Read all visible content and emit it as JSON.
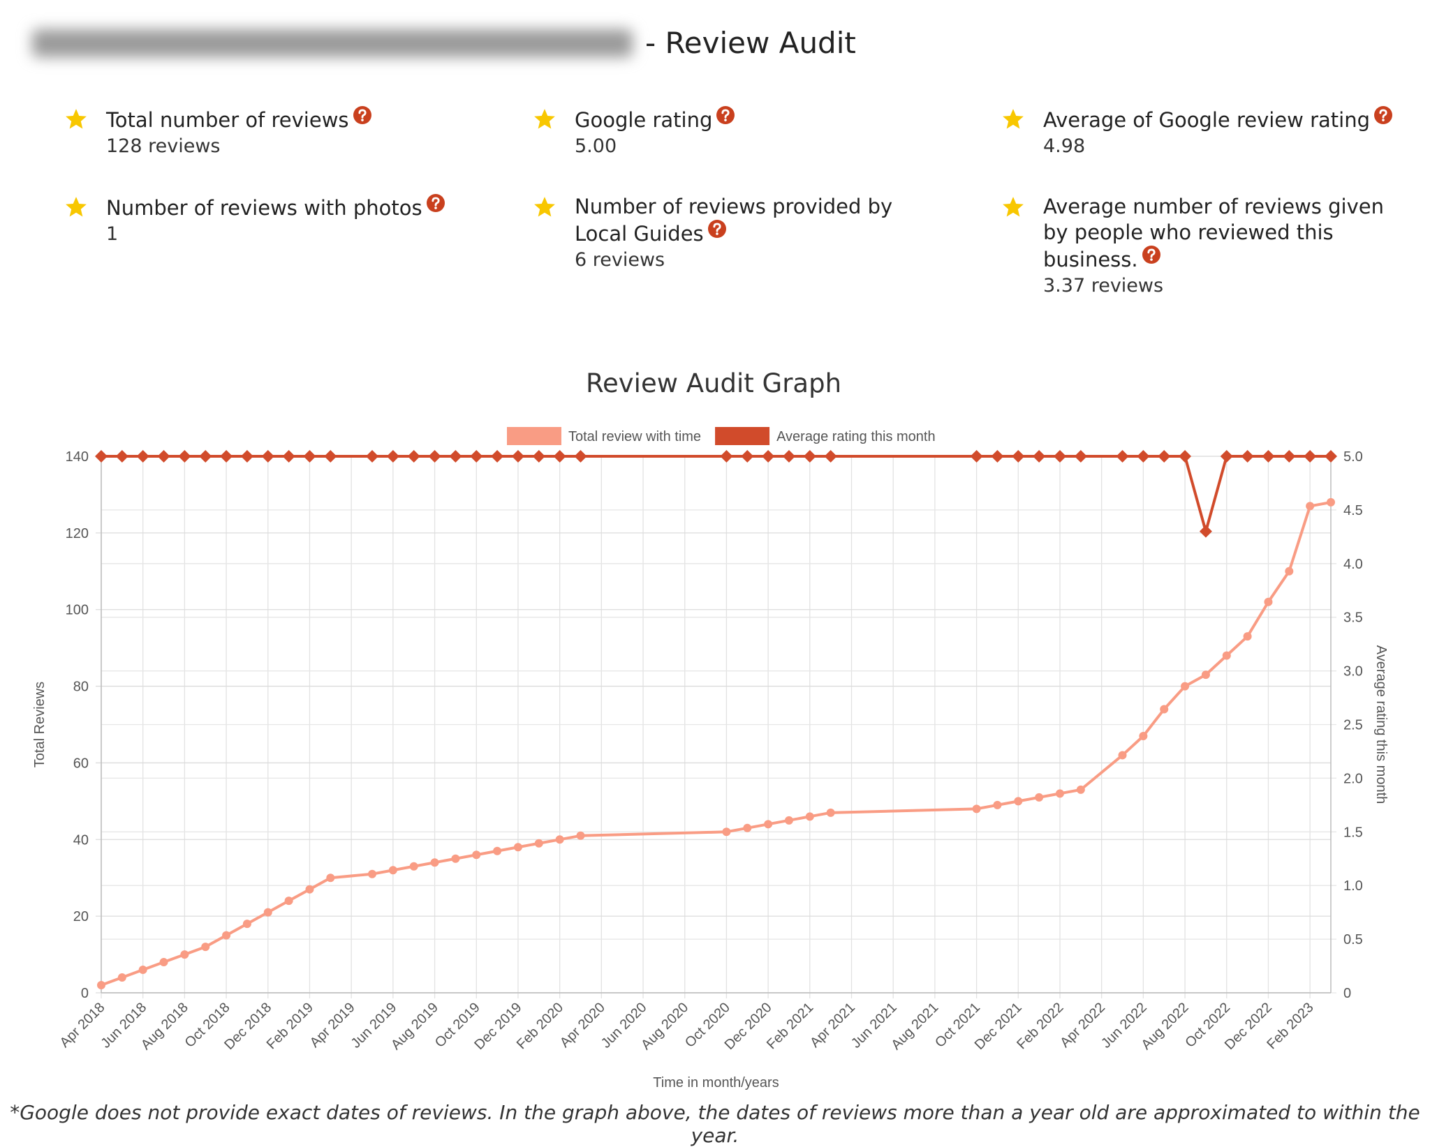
{
  "header": {
    "title": "- Review Audit"
  },
  "stats": [
    {
      "label": "Total number of reviews",
      "value": "128 reviews"
    },
    {
      "label": "Google rating",
      "value": "5.00"
    },
    {
      "label": "Average of Google review rating",
      "value": "4.98"
    },
    {
      "label": "Number of reviews with photos",
      "value": "1"
    },
    {
      "label": "Number of reviews provided by Local Guides",
      "value": "6 reviews"
    },
    {
      "label": "Average number of reviews given by people who reviewed this business.",
      "value": "3.37 reviews"
    }
  ],
  "chart_data": {
    "type": "line",
    "title": "Review Audit Graph",
    "x_label": "Time in month/years",
    "y_label": "Total Reviews",
    "y2_label": "Average rating this month",
    "categories": [
      "Apr 2018",
      null,
      "Jun 2018",
      null,
      "Aug 2018",
      null,
      "Oct 2018",
      null,
      "Dec 2018",
      null,
      "Feb 2019",
      null,
      "Apr 2019",
      null,
      "Jun 2019",
      null,
      "Aug 2019",
      null,
      "Oct 2019",
      null,
      "Dec 2019",
      null,
      "Feb 2020",
      null,
      "Apr 2020",
      null,
      "Jun 2020",
      null,
      "Aug 2020",
      null,
      "Oct 2020",
      null,
      "Dec 2020",
      null,
      "Feb 2021",
      null,
      "Apr 2021",
      null,
      "Jun 2021",
      null,
      "Aug 2021",
      null,
      "Oct 2021",
      null,
      "Dec 2021",
      null,
      "Feb 2022",
      null,
      "Apr 2022",
      null,
      "Jun 2022",
      null,
      "Aug 2022",
      null,
      "Oct 2022",
      null,
      "Dec 2022",
      null,
      "Feb 2023",
      null
    ],
    "series": [
      {
        "name": "Total review with time",
        "color": "#f99c84",
        "marker": "circle",
        "values": [
          2,
          4,
          6,
          8,
          10,
          12,
          15,
          18,
          21,
          24,
          27,
          30,
          null,
          31,
          32,
          33,
          34,
          35,
          36,
          37,
          38,
          39,
          40,
          41,
          null,
          null,
          null,
          null,
          null,
          null,
          42,
          43,
          44,
          45,
          46,
          47,
          null,
          null,
          null,
          null,
          null,
          null,
          48,
          49,
          50,
          51,
          52,
          53,
          null,
          62,
          67,
          74,
          80,
          83,
          88,
          93,
          102,
          110,
          127,
          128
        ]
      },
      {
        "name": "Average rating this month",
        "color": "#d14b2b",
        "marker": "diamond",
        "axis": "y2",
        "values": [
          5,
          5,
          5,
          5,
          5,
          5,
          5,
          5,
          5,
          5,
          5,
          5,
          null,
          5,
          5,
          5,
          5,
          5,
          5,
          5,
          5,
          5,
          5,
          5,
          null,
          null,
          null,
          null,
          null,
          null,
          5,
          5,
          5,
          5,
          5,
          5,
          null,
          null,
          null,
          null,
          null,
          null,
          5,
          5,
          5,
          5,
          5,
          5,
          null,
          5,
          5,
          5,
          5,
          4.3,
          5,
          5,
          5,
          5,
          5,
          5
        ]
      }
    ],
    "ylim": [
      0,
      140
    ],
    "yticks": [
      0,
      20,
      40,
      60,
      80,
      100,
      120,
      140
    ],
    "y2lim": [
      0,
      5
    ],
    "y2ticks": [
      0,
      0.5,
      {
        "value": 1,
        "label": "1.0"
      },
      1.5,
      {
        "value": 2,
        "label": "2.0"
      },
      2.5,
      {
        "value": 3,
        "label": "3.0"
      },
      3.5,
      {
        "value": 4,
        "label": "4.0"
      },
      4.5,
      {
        "value": 5,
        "label": "5.0"
      }
    ],
    "grid": true,
    "span_gaps": true,
    "legend": "top"
  },
  "footnote": "*Google does not provide exact dates of reviews. In the graph above, the dates of reviews more than a year old are approximated to within the year."
}
